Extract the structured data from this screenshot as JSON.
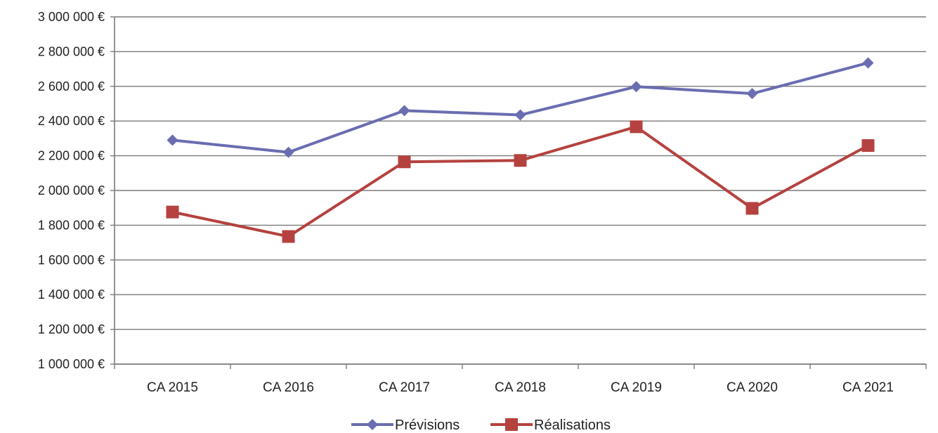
{
  "chart_data": {
    "type": "line",
    "categories": [
      "CA 2015",
      "CA 2016",
      "CA 2017",
      "CA 2018",
      "CA 2019",
      "CA 2020",
      "CA 2021"
    ],
    "series": [
      {
        "name": "Prévisions",
        "values": [
          2290000,
          2220000,
          2460000,
          2435000,
          2598000,
          2558000,
          2735000
        ],
        "color": "#6a6db0",
        "marker": "diamond"
      },
      {
        "name": "Réalisations",
        "values": [
          1876000,
          1735000,
          2165000,
          2173000,
          2367000,
          1897000,
          2259000
        ],
        "color": "#b5423f",
        "marker": "square"
      }
    ],
    "ylim": [
      1000000,
      3000000
    ],
    "yticks": [
      1000000,
      1200000,
      1400000,
      1600000,
      1800000,
      2000000,
      2200000,
      2400000,
      2600000,
      2800000,
      3000000
    ],
    "ytick_labels": [
      "1 000 000 €",
      "1 200 000 €",
      "1 400 000 €",
      "1 600 000 €",
      "1 800 000 €",
      "2 000 000 €",
      "2 200 000 €",
      "2 400 000 €",
      "2 600 000 €",
      "2 800 000 €",
      "3 000 000 €"
    ],
    "grid": true,
    "legend": "bottom"
  }
}
